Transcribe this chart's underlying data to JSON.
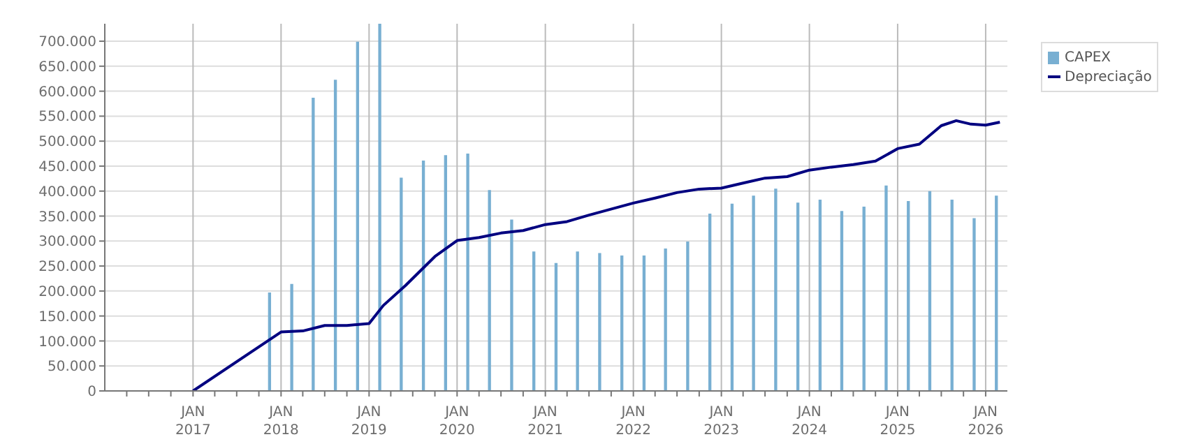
{
  "chart_data": {
    "type": "bar",
    "x": [
      "2017-11-15",
      "2018-02-15",
      "2018-05-15",
      "2018-08-15",
      "2018-11-15",
      "2019-02-15",
      "2019-05-15",
      "2019-08-15",
      "2019-11-15",
      "2020-02-15",
      "2020-05-15",
      "2020-08-15",
      "2020-11-15",
      "2021-02-15",
      "2021-05-15",
      "2021-08-15",
      "2021-11-15",
      "2022-02-15",
      "2022-05-15",
      "2022-08-15",
      "2022-11-15",
      "2023-02-15",
      "2023-05-15",
      "2023-08-15",
      "2023-11-15",
      "2024-02-15",
      "2024-05-15",
      "2024-08-15",
      "2024-11-15",
      "2025-02-15",
      "2025-05-15",
      "2025-08-15",
      "2025-11-15",
      "2026-02-15"
    ],
    "series": [
      {
        "name": "CAPEX",
        "color": "#78afd2",
        "values": [
          197000,
          214000,
          587000,
          623000,
          699000,
          735000,
          427000,
          461000,
          472000,
          475000,
          402000,
          343000,
          279000,
          256000,
          279000,
          276000,
          271000,
          271000,
          285000,
          299000,
          355000,
          375000,
          391000,
          405000,
          377000,
          383000,
          360000,
          369000,
          411000,
          380000,
          400000,
          383000,
          346000,
          391000
        ]
      },
      {
        "name": "Depreciação",
        "type": "line",
        "color": "#000080",
        "x": [
          "2017-01-01",
          "2018-01-01",
          "2018-04-01",
          "2018-07-01",
          "2018-10-01",
          "2019-01-01",
          "2019-03-01",
          "2019-06-01",
          "2019-10-01",
          "2020-01-01",
          "2020-04-01",
          "2020-07-01",
          "2020-10-01",
          "2021-01-01",
          "2021-04-01",
          "2021-07-01",
          "2022-01-01",
          "2022-04-01",
          "2022-07-01",
          "2022-10-01",
          "2023-01-01",
          "2023-04-01",
          "2023-07-01",
          "2023-10-01",
          "2024-01-01",
          "2024-04-01",
          "2024-07-01",
          "2024-10-01",
          "2025-01-01",
          "2025-04-01",
          "2025-07-01",
          "2025-09-01",
          "2025-11-01",
          "2026-01-01",
          "2026-03-01"
        ],
        "values": [
          0,
          118000,
          120000,
          131000,
          131000,
          135000,
          171000,
          211000,
          269000,
          301000,
          307000,
          316000,
          321000,
          333000,
          339000,
          352000,
          376000,
          386000,
          397000,
          404000,
          406000,
          416000,
          426000,
          429000,
          442000,
          448000,
          453000,
          460000,
          485000,
          494000,
          531000,
          541000,
          534000,
          532000,
          538000
        ]
      }
    ],
    "xlim": [
      "2016-01-01",
      "2026-04-01"
    ],
    "xticks": [
      {
        "value": "2016-04-01",
        "label": null
      },
      {
        "value": "2016-07-01",
        "label": null
      },
      {
        "value": "2016-10-01",
        "label": null
      },
      {
        "value": "2017-01-01",
        "label": "JAN 2017"
      },
      {
        "value": "2017-04-01",
        "label": null
      },
      {
        "value": "2017-07-01",
        "label": null
      },
      {
        "value": "2017-10-01",
        "label": null
      },
      {
        "value": "2018-01-01",
        "label": "JAN 2018"
      },
      {
        "value": "2018-04-01",
        "label": null
      },
      {
        "value": "2018-07-01",
        "label": null
      },
      {
        "value": "2018-10-01",
        "label": null
      },
      {
        "value": "2019-01-01",
        "label": "JAN 2019"
      },
      {
        "value": "2019-04-01",
        "label": null
      },
      {
        "value": "2019-07-01",
        "label": null
      },
      {
        "value": "2019-10-01",
        "label": null
      },
      {
        "value": "2020-01-01",
        "label": "JAN 2020"
      },
      {
        "value": "2020-04-01",
        "label": null
      },
      {
        "value": "2020-07-01",
        "label": null
      },
      {
        "value": "2020-10-01",
        "label": null
      },
      {
        "value": "2021-01-01",
        "label": "JAN 2021"
      },
      {
        "value": "2021-04-01",
        "label": null
      },
      {
        "value": "2021-07-01",
        "label": null
      },
      {
        "value": "2021-10-01",
        "label": null
      },
      {
        "value": "2022-01-01",
        "label": "JAN 2022"
      },
      {
        "value": "2022-04-01",
        "label": null
      },
      {
        "value": "2022-07-01",
        "label": null
      },
      {
        "value": "2022-10-01",
        "label": null
      },
      {
        "value": "2023-01-01",
        "label": "JAN 2023"
      },
      {
        "value": "2023-04-01",
        "label": null
      },
      {
        "value": "2023-07-01",
        "label": null
      },
      {
        "value": "2023-10-01",
        "label": null
      },
      {
        "value": "2024-01-01",
        "label": "JAN 2024"
      },
      {
        "value": "2024-04-01",
        "label": null
      },
      {
        "value": "2024-07-01",
        "label": null
      },
      {
        "value": "2024-10-01",
        "label": null
      },
      {
        "value": "2025-01-01",
        "label": "JAN 2025"
      },
      {
        "value": "2025-04-01",
        "label": null
      },
      {
        "value": "2025-07-01",
        "label": null
      },
      {
        "value": "2025-10-01",
        "label": null
      },
      {
        "value": "2026-01-01",
        "label": "JAN 2026"
      }
    ],
    "ylim": [
      0,
      735000
    ],
    "yticks": [
      {
        "value": 0,
        "label": "0"
      },
      {
        "value": 50000,
        "label": "50.000"
      },
      {
        "value": 100000,
        "label": "100.000"
      },
      {
        "value": 150000,
        "label": "150.000"
      },
      {
        "value": 200000,
        "label": "200.000"
      },
      {
        "value": 250000,
        "label": "250.000"
      },
      {
        "value": 300000,
        "label": "300.000"
      },
      {
        "value": 350000,
        "label": "350.000"
      },
      {
        "value": 400000,
        "label": "400.000"
      },
      {
        "value": 450000,
        "label": "450.000"
      },
      {
        "value": 500000,
        "label": "500.000"
      },
      {
        "value": 550000,
        "label": "550.000"
      },
      {
        "value": 600000,
        "label": "600.000"
      },
      {
        "value": 650000,
        "label": "650.000"
      },
      {
        "value": 700000,
        "label": "700.000"
      }
    ],
    "grid": true,
    "legend": "top right",
    "marker": "none",
    "line_style": "solid"
  }
}
